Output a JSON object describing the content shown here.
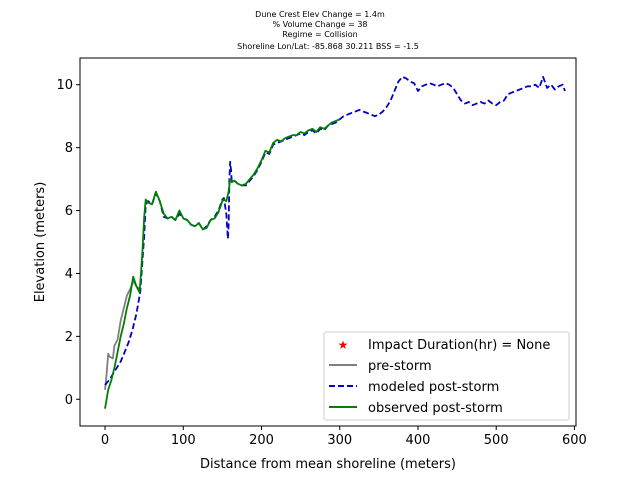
{
  "chart_data": {
    "type": "line",
    "title_lines": [
      "Dune Crest Elev Change = 1.4m",
      "% Volume Change = 38",
      "Regime = Collision",
      "Shoreline Lon/Lat: -85.868 30.211   BSS = -1.5"
    ],
    "xlabel": "Distance from mean shoreline (meters)",
    "ylabel": "Elevation (meters)",
    "xlim": [
      -32,
      602
    ],
    "ylim": [
      -0.85,
      10.85
    ],
    "xticks": [
      0,
      100,
      200,
      300,
      400,
      500,
      600
    ],
    "yticks": [
      0,
      2,
      4,
      6,
      8,
      10
    ],
    "grid": false,
    "legend_position": "lower right",
    "series": [
      {
        "name": "Impact Duration(hr) = None",
        "color": "#ff0000",
        "style": "star-marker",
        "x": [],
        "y": []
      },
      {
        "name": "pre-storm",
        "color": "#808080",
        "style": "solid",
        "x": [
          0,
          2,
          4,
          6,
          10,
          12,
          14,
          16,
          20,
          24,
          28,
          32,
          36,
          40,
          44
        ],
        "y": [
          0.3,
          0.8,
          1.45,
          1.35,
          1.3,
          1.7,
          1.8,
          1.9,
          2.5,
          2.9,
          3.3,
          3.5,
          3.75,
          3.6,
          3.5
        ]
      },
      {
        "name": "modeled post-storm",
        "color": "#0000cc",
        "style": "dashed",
        "x": [
          0,
          5,
          10,
          15,
          20,
          25,
          30,
          35,
          40,
          45,
          50,
          52,
          55,
          60,
          65,
          70,
          75,
          80,
          85,
          90,
          95,
          100,
          105,
          110,
          115,
          120,
          125,
          130,
          135,
          140,
          145,
          150,
          152,
          155,
          157,
          158,
          159,
          160,
          161,
          162,
          165,
          170,
          175,
          180,
          185,
          190,
          195,
          200,
          205,
          210,
          215,
          220,
          225,
          230,
          235,
          240,
          245,
          250,
          255,
          260,
          265,
          270,
          275,
          280,
          285,
          290,
          295,
          300,
          305,
          310,
          315,
          320,
          325,
          330,
          335,
          340,
          345,
          350,
          355,
          360,
          365,
          370,
          375,
          380,
          385,
          390,
          395,
          400,
          405,
          410,
          415,
          420,
          425,
          430,
          435,
          440,
          445,
          450,
          455,
          460,
          465,
          470,
          475,
          480,
          485,
          490,
          495,
          500,
          505,
          510,
          515,
          520,
          525,
          530,
          535,
          540,
          545,
          550,
          555,
          560,
          565,
          570,
          575,
          580,
          585,
          588
        ],
        "y": [
          0.45,
          0.6,
          0.8,
          1.0,
          1.2,
          1.5,
          1.8,
          2.2,
          2.7,
          3.4,
          5.2,
          6.2,
          6.3,
          6.2,
          6.55,
          6.3,
          5.8,
          5.75,
          5.8,
          5.7,
          5.9,
          5.75,
          5.7,
          5.55,
          5.5,
          5.6,
          5.4,
          5.5,
          5.7,
          5.8,
          6.0,
          6.35,
          6.4,
          5.9,
          5.1,
          5.5,
          7.0,
          7.55,
          7.3,
          6.9,
          6.95,
          6.85,
          6.8,
          6.8,
          6.95,
          7.1,
          7.3,
          7.55,
          7.85,
          7.8,
          8.1,
          8.15,
          8.2,
          8.25,
          8.3,
          8.35,
          8.4,
          8.45,
          8.4,
          8.5,
          8.55,
          8.45,
          8.6,
          8.55,
          8.7,
          8.75,
          8.8,
          8.9,
          9.0,
          9.05,
          9.1,
          9.15,
          9.2,
          9.15,
          9.1,
          9.05,
          9.0,
          9.05,
          9.15,
          9.3,
          9.5,
          9.8,
          10.1,
          10.25,
          10.2,
          10.1,
          10.05,
          9.8,
          9.95,
          10.0,
          10.05,
          10.0,
          9.95,
          10.0,
          10.05,
          10.0,
          9.9,
          9.7,
          9.5,
          9.4,
          9.45,
          9.35,
          9.4,
          9.45,
          9.4,
          9.5,
          9.4,
          9.35,
          9.45,
          9.5,
          9.7,
          9.75,
          9.8,
          9.85,
          9.9,
          9.95,
          9.95,
          10.0,
          9.9,
          10.25,
          9.9,
          10.0,
          9.85,
          9.95,
          10.0,
          9.8
        ]
      },
      {
        "name": "observed post-storm",
        "color": "#008000",
        "style": "solid",
        "x": [
          0,
          2,
          4,
          8,
          12,
          16,
          20,
          24,
          28,
          32,
          36,
          40,
          44,
          46,
          48,
          50,
          52,
          55,
          60,
          65,
          70,
          75,
          80,
          85,
          90,
          95,
          100,
          105,
          110,
          115,
          120,
          125,
          130,
          135,
          140,
          145,
          150,
          152,
          155,
          158,
          160,
          162,
          165,
          170,
          175,
          180,
          185,
          190,
          195,
          200,
          205,
          210,
          215,
          220,
          225,
          230,
          235,
          240,
          245,
          250,
          255,
          260,
          265,
          270,
          275,
          280,
          285,
          290,
          295,
          300
        ],
        "y": [
          -0.3,
          0.0,
          0.3,
          0.6,
          1.0,
          1.5,
          2.0,
          2.4,
          2.9,
          3.3,
          3.9,
          3.6,
          3.4,
          4.0,
          4.8,
          5.8,
          6.35,
          6.25,
          6.2,
          6.6,
          6.3,
          5.9,
          5.75,
          5.8,
          5.7,
          6.0,
          5.75,
          5.7,
          5.55,
          5.5,
          5.6,
          5.4,
          5.45,
          5.7,
          5.75,
          5.95,
          6.3,
          6.35,
          6.3,
          6.6,
          7.0,
          6.9,
          6.95,
          6.85,
          6.8,
          6.85,
          7.0,
          7.15,
          7.35,
          7.6,
          7.9,
          7.85,
          8.15,
          8.25,
          8.2,
          8.3,
          8.35,
          8.4,
          8.4,
          8.5,
          8.45,
          8.55,
          8.6,
          8.5,
          8.65,
          8.6,
          8.7,
          8.8,
          8.85,
          8.9
        ]
      }
    ]
  }
}
